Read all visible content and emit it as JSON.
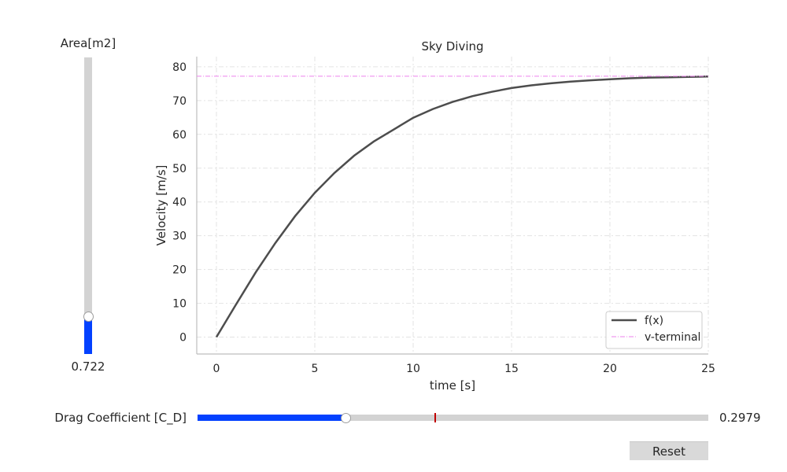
{
  "sliders": {
    "area": {
      "label": "Area[m2]",
      "value_text": "0.722",
      "fraction": 0.125
    },
    "drag": {
      "label": "Drag Coefficient [C_D]",
      "value_text": "0.2979",
      "fraction": 0.29,
      "initial_fraction": 0.465
    }
  },
  "reset_label": "Reset",
  "colors": {
    "slider_fill": "#0341ff",
    "slider_track": "#d3d3d3",
    "curve": "#4d4d4d",
    "terminal": "#ee82ee",
    "initial_marker": "#c00000"
  },
  "chart_data": {
    "type": "line",
    "title": "Sky Diving",
    "xlabel": "time [s]",
    "ylabel": "Velocity [m/s]",
    "xlim": [
      -1,
      25
    ],
    "ylim": [
      -5,
      83
    ],
    "xticks": [
      0,
      5,
      10,
      15,
      20,
      25
    ],
    "yticks": [
      0,
      10,
      20,
      30,
      40,
      50,
      60,
      70,
      80
    ],
    "grid": true,
    "legend_position": "lower-right",
    "series": [
      {
        "name": "f(x)",
        "style": "solid",
        "x": [
          0,
          1,
          2,
          3,
          4,
          5,
          6,
          7,
          8,
          9,
          10,
          11,
          12,
          13,
          14,
          15,
          16,
          17,
          18,
          19,
          20,
          21,
          22,
          23,
          24,
          25
        ],
        "y": [
          0,
          9.7,
          19.2,
          27.9,
          35.8,
          42.7,
          48.6,
          53.7,
          57.9,
          61.4,
          64.9,
          67.5,
          69.6,
          71.3,
          72.6,
          73.7,
          74.5,
          75.1,
          75.6,
          76.0,
          76.3,
          76.6,
          76.8,
          76.9,
          77.0,
          77.1
        ]
      },
      {
        "name": "v-terminal",
        "style": "dashdot",
        "x": [
          -1,
          25
        ],
        "y": [
          77.2,
          77.2
        ]
      }
    ]
  }
}
